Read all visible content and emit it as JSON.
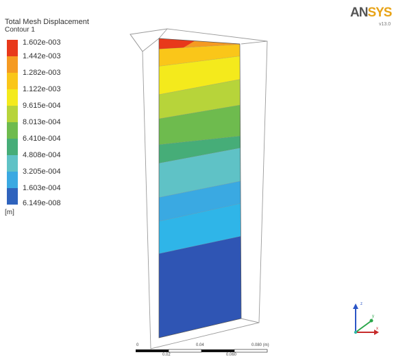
{
  "legend": {
    "title": "Total Mesh Displacement",
    "subtitle": "Contour 1",
    "unit": "[m]",
    "levels": [
      "1.602e-003",
      "1.442e-003",
      "1.282e-003",
      "1.122e-003",
      "9.615e-004",
      "8.013e-004",
      "6.410e-004",
      "4.808e-004",
      "3.205e-004",
      "1.603e-004",
      "6.149e-008"
    ],
    "colors": [
      "#e8391b",
      "#f59a22",
      "#fac619",
      "#f4ea1c",
      "#b7d43a",
      "#6ebb4e",
      "#46ad78",
      "#5fc2c6",
      "#3aa9e2",
      "#2f63bd"
    ]
  },
  "logo": {
    "text_main": "AN",
    "text_accent": "SYS",
    "version": "v13.0"
  },
  "scale": {
    "labels": [
      "0",
      "0.04",
      "0.080 (m)"
    ],
    "sub_labels": [
      "0.02",
      "0.060"
    ]
  },
  "axes_triad": {
    "axes": [
      "x",
      "y",
      "z"
    ]
  }
}
